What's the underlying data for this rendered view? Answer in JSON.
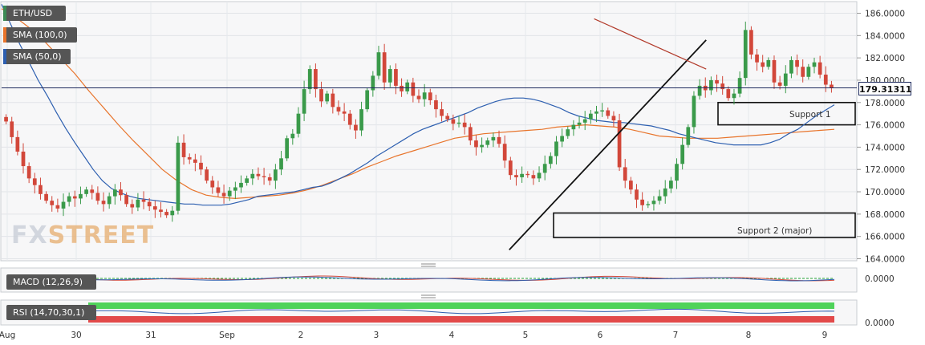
{
  "legend": {
    "pair": {
      "label": "ETH/USD",
      "color": "#3b8a55"
    },
    "sma100": {
      "label": "SMA (100,0)",
      "color": "#e8742b"
    },
    "sma50": {
      "label": "SMA (50,0)",
      "color": "#2d5fb0"
    }
  },
  "watermark": {
    "part1": "FX",
    "part2": "STREET"
  },
  "current_price": "179.31311",
  "annotations": {
    "support1": "Support 1",
    "support2": "Support 2 (major)"
  },
  "indicators": {
    "macd": {
      "label": "MACD (12,26,9)",
      "tick": "0.0000"
    },
    "rsi": {
      "label": "RSI (14,70,30,1)",
      "tick": "0.0000"
    }
  },
  "chart_data": {
    "type": "candlestick",
    "title": "",
    "x_ticks": [
      "Aug",
      "30",
      "31",
      "Sep",
      "2",
      "3",
      "4",
      "5",
      "6",
      "7",
      "8",
      "9"
    ],
    "y_ticks": [
      "186.0000",
      "184.0000",
      "182.0000",
      "180.0000",
      "178.0000",
      "176.0000",
      "174.0000",
      "172.0000",
      "170.0000",
      "168.0000",
      "166.0000",
      "164.0000"
    ],
    "ylim": [
      163.6,
      187.0
    ],
    "colors": {
      "up": "#3a9a4a",
      "down": "#d2473a",
      "sma100": "#e8742b",
      "sma50": "#2d5fb0",
      "price_line": "#1e2a5e",
      "trendline_down": "#b23a2a"
    },
    "close_series": [
      176.3,
      174.9,
      173.6,
      172.3,
      171.2,
      170.6,
      169.8,
      169.2,
      168.8,
      168.5,
      169.1,
      169.6,
      169.4,
      169.8,
      170.2,
      169.9,
      169.2,
      168.9,
      169.6,
      170.2,
      169.7,
      168.9,
      168.6,
      169.3,
      169.1,
      168.7,
      168.4,
      168.2,
      167.9,
      168.3,
      174.4,
      173.1,
      172.9,
      172.6,
      172.0,
      171.0,
      170.4,
      169.9,
      169.6,
      170.1,
      170.4,
      170.8,
      171.2,
      171.6,
      171.4,
      171.3,
      171.0,
      172.0,
      173.0,
      174.8,
      175.2,
      177.0,
      179.2,
      181.0,
      179.2,
      178.1,
      178.8,
      177.6,
      177.2,
      177.0,
      176.0,
      175.5,
      177.4,
      179.1,
      180.4,
      182.5,
      179.8,
      181.0,
      179.5,
      179.0,
      179.8,
      178.6,
      178.3,
      178.9,
      178.2,
      177.4,
      176.8,
      176.5,
      176.1,
      176.2,
      175.8,
      174.6,
      174.0,
      174.2,
      174.6,
      174.9,
      174.3,
      172.8,
      171.5,
      171.3,
      171.6,
      171.5,
      171.2,
      171.7,
      172.5,
      173.2,
      174.5,
      175.0,
      175.6,
      176.0,
      176.2,
      176.5,
      177.0,
      177.2,
      177.3,
      176.8,
      176.4,
      172.2,
      171.0,
      170.2,
      169.3,
      168.8,
      168.9,
      169.2,
      169.6,
      170.3,
      171.0,
      172.5,
      174.2,
      175.8,
      178.6,
      179.5,
      179.1,
      180.0,
      179.7,
      179.2,
      178.4,
      178.8,
      180.2,
      184.5,
      182.3,
      181.6,
      181.2,
      181.8,
      179.8,
      179.5,
      180.6,
      181.8,
      181.2,
      180.3,
      181.2,
      181.6,
      180.5,
      179.6,
      179.3
    ],
    "sma50": [
      186.8,
      185.0,
      183.2,
      181.6,
      180.0,
      178.6,
      177.1,
      175.7,
      174.4,
      173.2,
      172.0,
      171.0,
      170.3,
      169.9,
      169.6,
      169.4,
      169.3,
      169.2,
      169.1,
      169.0,
      168.9,
      168.9,
      168.8,
      168.8,
      168.8,
      168.9,
      169.1,
      169.3,
      169.6,
      169.7,
      169.8,
      169.9,
      170.0,
      170.2,
      170.4,
      170.5,
      170.8,
      171.2,
      171.6,
      172.1,
      172.6,
      173.2,
      173.7,
      174.2,
      174.7,
      175.2,
      175.6,
      175.9,
      176.2,
      176.5,
      176.8,
      177.1,
      177.5,
      177.8,
      178.1,
      178.3,
      178.4,
      178.4,
      178.3,
      178.1,
      177.8,
      177.5,
      177.1,
      176.8,
      176.6,
      176.4,
      176.3,
      176.2,
      176.2,
      176.1,
      176.0,
      175.9,
      175.7,
      175.5,
      175.2,
      175.0,
      174.8,
      174.6,
      174.4,
      174.3,
      174.2,
      174.2,
      174.2,
      174.2,
      174.4,
      174.7,
      175.2,
      175.6,
      176.2,
      176.8,
      177.3,
      177.8
    ],
    "sma100": [
      186.4,
      185.6,
      184.6,
      183.4,
      182.0,
      180.6,
      179.0,
      177.5,
      176.0,
      174.6,
      173.3,
      172.0,
      171.0,
      170.2,
      169.7,
      169.5,
      169.4,
      169.5,
      169.6,
      169.7,
      169.9,
      170.2,
      170.6,
      171.1,
      171.6,
      172.2,
      172.7,
      173.2,
      173.6,
      174.0,
      174.4,
      174.8,
      175.0,
      175.2,
      175.3,
      175.4,
      175.5,
      175.6,
      175.8,
      175.9,
      176.0,
      175.9,
      175.8,
      175.6,
      175.3,
      175.0,
      174.9,
      174.8,
      174.8,
      174.8,
      174.9,
      175.0,
      175.1,
      175.2,
      175.3,
      175.4,
      175.5,
      175.6
    ],
    "trendlines": [
      {
        "from": [
          6.78,
          164.8
        ],
        "to": [
          9.42,
          183.6
        ]
      },
      {
        "from": [
          7.92,
          185.5
        ],
        "to": [
          9.42,
          181.0
        ]
      }
    ],
    "zones": [
      {
        "name": "Support 1",
        "y1": 176.0,
        "y2": 178.0
      },
      {
        "name": "Support 2 (major)",
        "y1": 165.9,
        "y2": 168.1
      }
    ],
    "grid": true
  }
}
